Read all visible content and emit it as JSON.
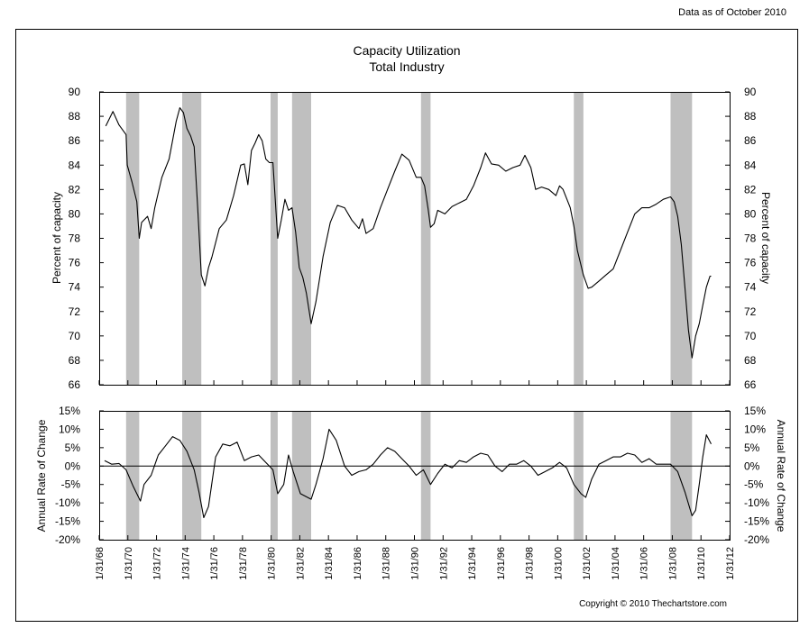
{
  "header": {
    "data_as_of": "Data as of October 2010"
  },
  "footer": {
    "copyright": "Copyright © 2010 Thechartstore.com"
  },
  "chart_data": [
    {
      "type": "line",
      "title": "Capacity Utilization",
      "subtitle": "Total Industry",
      "ylabel": "Percent of capacity",
      "ylim": [
        66,
        90
      ],
      "yticks": [
        "66",
        "68",
        "70",
        "72",
        "74",
        "76",
        "78",
        "80",
        "82",
        "84",
        "86",
        "88",
        "90"
      ],
      "grid": false,
      "x_domain": [
        "1/31/68",
        "1/31/12"
      ],
      "recessions": [
        {
          "start": "1969-12",
          "end": "1970-11"
        },
        {
          "start": "1973-11",
          "end": "1975-03"
        },
        {
          "start": "1980-01",
          "end": "1980-07"
        },
        {
          "start": "1981-07",
          "end": "1982-11"
        },
        {
          "start": "1990-07",
          "end": "1991-03"
        },
        {
          "start": "2001-03",
          "end": "2001-11"
        },
        {
          "start": "2007-12",
          "end": "2009-06"
        }
      ],
      "series": [
        {
          "points": [
            [
              "1967-01",
              87.5
            ],
            [
              "1967-07",
              87.0
            ],
            [
              "1968-01",
              87.5
            ],
            [
              "1968-07",
              87.2
            ],
            [
              "1969-01",
              88.4
            ],
            [
              "1969-06",
              87.3
            ],
            [
              "1969-12",
              86.5
            ],
            [
              "1970-01",
              84.0
            ],
            [
              "1970-05",
              82.6
            ],
            [
              "1970-09",
              81.0
            ],
            [
              "1970-11",
              78.0
            ],
            [
              "1971-01",
              79.3
            ],
            [
              "1971-06",
              79.8
            ],
            [
              "1971-09",
              78.8
            ],
            [
              "1971-12",
              80.5
            ],
            [
              "1972-06",
              83.0
            ],
            [
              "1972-12",
              84.5
            ],
            [
              "1973-06",
              87.6
            ],
            [
              "1973-09",
              88.7
            ],
            [
              "1973-12",
              88.3
            ],
            [
              "1974-03",
              87.0
            ],
            [
              "1974-06",
              86.4
            ],
            [
              "1974-09",
              85.5
            ],
            [
              "1974-12",
              80.5
            ],
            [
              "1975-03",
              75.0
            ],
            [
              "1975-06",
              74.1
            ],
            [
              "1975-09",
              75.6
            ],
            [
              "1975-12",
              76.5
            ],
            [
              "1976-06",
              78.8
            ],
            [
              "1976-12",
              79.5
            ],
            [
              "1977-06",
              81.5
            ],
            [
              "1977-12",
              84.0
            ],
            [
              "1978-03",
              84.1
            ],
            [
              "1978-06",
              82.4
            ],
            [
              "1978-09",
              85.2
            ],
            [
              "1978-12",
              85.8
            ],
            [
              "1979-03",
              86.5
            ],
            [
              "1979-06",
              86.0
            ],
            [
              "1979-09",
              84.5
            ],
            [
              "1979-12",
              84.2
            ],
            [
              "1980-03",
              84.2
            ],
            [
              "1980-07",
              78.0
            ],
            [
              "1980-10",
              79.5
            ],
            [
              "1981-01",
              81.2
            ],
            [
              "1981-04",
              80.3
            ],
            [
              "1981-07",
              80.5
            ],
            [
              "1981-10",
              78.5
            ],
            [
              "1982-01",
              75.6
            ],
            [
              "1982-04",
              74.8
            ],
            [
              "1982-07",
              73.5
            ],
            [
              "1982-11",
              71.0
            ],
            [
              "1983-03",
              72.8
            ],
            [
              "1983-09",
              76.5
            ],
            [
              "1984-03",
              79.3
            ],
            [
              "1984-09",
              80.7
            ],
            [
              "1985-03",
              80.5
            ],
            [
              "1985-09",
              79.5
            ],
            [
              "1986-03",
              78.8
            ],
            [
              "1986-06",
              79.6
            ],
            [
              "1986-09",
              78.4
            ],
            [
              "1987-03",
              78.8
            ],
            [
              "1987-09",
              80.5
            ],
            [
              "1988-03",
              82.0
            ],
            [
              "1988-09",
              83.5
            ],
            [
              "1989-03",
              84.9
            ],
            [
              "1989-09",
              84.4
            ],
            [
              "1990-03",
              83.0
            ],
            [
              "1990-07",
              83.0
            ],
            [
              "1990-10",
              82.3
            ],
            [
              "1991-01",
              80.4
            ],
            [
              "1991-03",
              78.9
            ],
            [
              "1991-06",
              79.2
            ],
            [
              "1991-09",
              80.3
            ],
            [
              "1992-03",
              80.0
            ],
            [
              "1992-09",
              80.6
            ],
            [
              "1993-03",
              80.9
            ],
            [
              "1993-09",
              81.2
            ],
            [
              "1994-03",
              82.3
            ],
            [
              "1994-09",
              83.8
            ],
            [
              "1995-01",
              85.0
            ],
            [
              "1995-06",
              84.1
            ],
            [
              "1995-12",
              84.0
            ],
            [
              "1996-06",
              83.5
            ],
            [
              "1996-12",
              83.8
            ],
            [
              "1997-06",
              84.0
            ],
            [
              "1997-10",
              84.8
            ],
            [
              "1998-03",
              83.8
            ],
            [
              "1998-07",
              82.0
            ],
            [
              "1998-12",
              82.2
            ],
            [
              "1999-06",
              82.0
            ],
            [
              "1999-12",
              81.5
            ],
            [
              "2000-03",
              82.3
            ],
            [
              "2000-06",
              82.0
            ],
            [
              "2000-12",
              80.5
            ],
            [
              "2001-03",
              79.0
            ],
            [
              "2001-06",
              77.0
            ],
            [
              "2001-11",
              75.0
            ],
            [
              "2002-03",
              73.9
            ],
            [
              "2002-06",
              74.0
            ],
            [
              "2002-12",
              74.5
            ],
            [
              "2003-06",
              75.0
            ],
            [
              "2003-12",
              75.5
            ],
            [
              "2004-06",
              77.0
            ],
            [
              "2004-12",
              78.5
            ],
            [
              "2005-06",
              80.0
            ],
            [
              "2005-12",
              80.5
            ],
            [
              "2006-06",
              80.5
            ],
            [
              "2006-12",
              80.8
            ],
            [
              "2007-06",
              81.2
            ],
            [
              "2007-12",
              81.4
            ],
            [
              "2008-03",
              81.0
            ],
            [
              "2008-06",
              79.8
            ],
            [
              "2008-09",
              77.5
            ],
            [
              "2008-12",
              74.0
            ],
            [
              "2009-03",
              70.5
            ],
            [
              "2009-06",
              68.2
            ],
            [
              "2009-09",
              70.0
            ],
            [
              "2009-12",
              71.0
            ],
            [
              "2010-03",
              72.5
            ],
            [
              "2010-06",
              74.0
            ],
            [
              "2010-09",
              74.9
            ],
            [
              "2010-10",
              74.9
            ]
          ]
        }
      ]
    },
    {
      "type": "line",
      "ylabel": "Annual Rate of Change",
      "ylim": [
        -20,
        15
      ],
      "yticks": [
        "-20%",
        "-15%",
        "-10%",
        "-5%",
        "0%",
        "5%",
        "10%",
        "15%"
      ],
      "grid": false,
      "reference_line": 0,
      "x_domain": [
        "1/31/68",
        "1/31/12"
      ],
      "x_ticks": [
        "1/31/68",
        "1/31/70",
        "1/31/72",
        "1/31/74",
        "1/31/76",
        "1/31/78",
        "1/31/80",
        "1/31/82",
        "1/31/84",
        "1/31/86",
        "1/31/88",
        "1/31/90",
        "1/31/92",
        "1/31/94",
        "1/31/96",
        "1/31/98",
        "1/31/00",
        "1/31/02",
        "1/31/04",
        "1/31/06",
        "1/31/08",
        "1/31/10",
        "1/31/12"
      ],
      "series": [
        {
          "points": [
            [
              "1968-01",
              -2.0
            ],
            [
              "1968-06",
              1.5
            ],
            [
              "1968-12",
              0.5
            ],
            [
              "1969-06",
              0.7
            ],
            [
              "1969-12",
              -1.0
            ],
            [
              "1970-06",
              -5.5
            ],
            [
              "1970-12",
              -9.5
            ],
            [
              "1971-03",
              -5.0
            ],
            [
              "1971-09",
              -2.5
            ],
            [
              "1972-03",
              3.0
            ],
            [
              "1972-09",
              5.5
            ],
            [
              "1973-03",
              8.0
            ],
            [
              "1973-09",
              7.0
            ],
            [
              "1974-03",
              4.0
            ],
            [
              "1974-09",
              -1.0
            ],
            [
              "1975-01",
              -7.0
            ],
            [
              "1975-05",
              -14.0
            ],
            [
              "1975-09",
              -11.0
            ],
            [
              "1976-03",
              2.5
            ],
            [
              "1976-09",
              6.0
            ],
            [
              "1977-03",
              5.5
            ],
            [
              "1977-09",
              6.5
            ],
            [
              "1978-03",
              1.5
            ],
            [
              "1978-09",
              2.5
            ],
            [
              "1979-03",
              3.0
            ],
            [
              "1979-09",
              1.0
            ],
            [
              "1980-03",
              -1.0
            ],
            [
              "1980-07",
              -7.5
            ],
            [
              "1980-12",
              -5.0
            ],
            [
              "1981-04",
              3.0
            ],
            [
              "1981-08",
              -1.5
            ],
            [
              "1982-02",
              -7.5
            ],
            [
              "1982-11",
              -9.0
            ],
            [
              "1983-03",
              -5.0
            ],
            [
              "1983-09",
              2.0
            ],
            [
              "1984-02",
              10.0
            ],
            [
              "1984-08",
              7.0
            ],
            [
              "1985-03",
              0.0
            ],
            [
              "1985-09",
              -2.5
            ],
            [
              "1986-03",
              -1.5
            ],
            [
              "1986-09",
              -1.0
            ],
            [
              "1987-03",
              0.5
            ],
            [
              "1987-09",
              3.0
            ],
            [
              "1988-03",
              5.0
            ],
            [
              "1988-09",
              4.0
            ],
            [
              "1989-03",
              2.0
            ],
            [
              "1989-09",
              0.0
            ],
            [
              "1990-03",
              -2.5
            ],
            [
              "1990-09",
              -1.0
            ],
            [
              "1991-03",
              -5.0
            ],
            [
              "1991-09",
              -2.0
            ],
            [
              "1992-03",
              0.5
            ],
            [
              "1992-09",
              -0.5
            ],
            [
              "1993-03",
              1.5
            ],
            [
              "1993-09",
              1.0
            ],
            [
              "1994-03",
              2.5
            ],
            [
              "1994-09",
              3.5
            ],
            [
              "1995-03",
              3.0
            ],
            [
              "1995-09",
              0.0
            ],
            [
              "1996-03",
              -1.5
            ],
            [
              "1996-09",
              0.5
            ],
            [
              "1997-03",
              0.5
            ],
            [
              "1997-09",
              1.5
            ],
            [
              "1998-03",
              0.0
            ],
            [
              "1998-09",
              -2.5
            ],
            [
              "1999-03",
              -1.5
            ],
            [
              "1999-09",
              -0.5
            ],
            [
              "2000-03",
              1.0
            ],
            [
              "2000-09",
              -0.5
            ],
            [
              "2001-03",
              -5.0
            ],
            [
              "2001-09",
              -7.5
            ],
            [
              "2002-01",
              -8.5
            ],
            [
              "2002-06",
              -3.5
            ],
            [
              "2002-12",
              0.5
            ],
            [
              "2003-06",
              1.5
            ],
            [
              "2003-12",
              2.5
            ],
            [
              "2004-06",
              2.5
            ],
            [
              "2004-12",
              3.5
            ],
            [
              "2005-06",
              3.0
            ],
            [
              "2005-12",
              1.0
            ],
            [
              "2006-06",
              2.0
            ],
            [
              "2006-12",
              0.5
            ],
            [
              "2007-06",
              0.5
            ],
            [
              "2007-12",
              0.5
            ],
            [
              "2008-06",
              -1.5
            ],
            [
              "2008-12",
              -7.0
            ],
            [
              "2009-06",
              -13.5
            ],
            [
              "2009-09",
              -12.0
            ],
            [
              "2009-12",
              -5.0
            ],
            [
              "2010-03",
              2.5
            ],
            [
              "2010-06",
              8.5
            ],
            [
              "2010-10",
              6.0
            ]
          ]
        }
      ]
    }
  ]
}
